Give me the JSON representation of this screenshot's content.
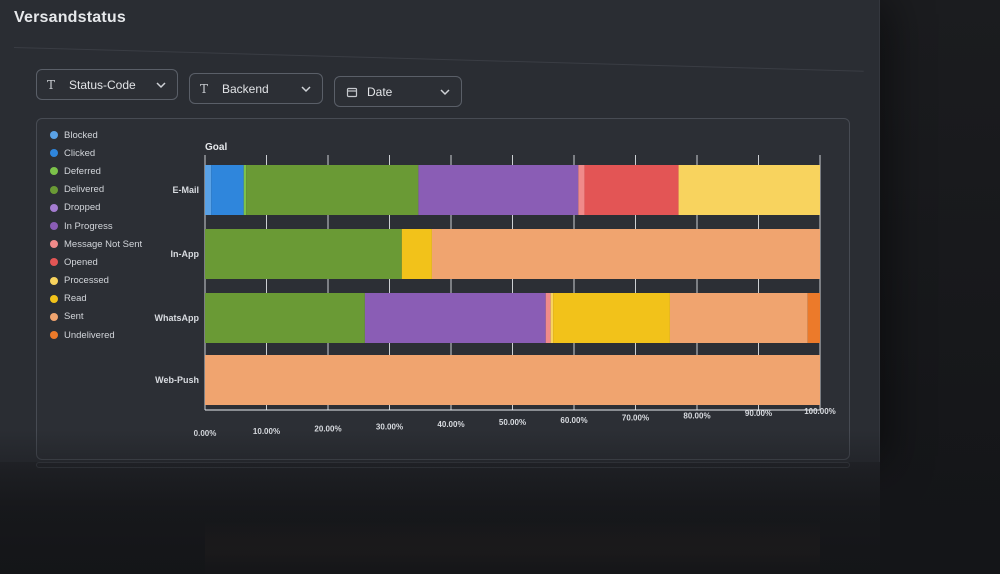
{
  "page": {
    "title": "Versandstatus"
  },
  "filters": [
    {
      "label": "Status-Code",
      "icon": "text-type-icon",
      "icon_glyph": "T"
    },
    {
      "label": "Backend",
      "icon": "text-type-icon",
      "icon_glyph": "T"
    },
    {
      "label": "Date",
      "icon": "calendar-icon",
      "icon_glyph": "▭"
    }
  ],
  "chart_data": {
    "type": "bar",
    "orientation": "horizontal",
    "stacked": true,
    "normalized": true,
    "title": "Goal",
    "categories": [
      "E-Mail",
      "In-App",
      "WhatsApp",
      "Web-Push"
    ],
    "xlim": [
      0,
      100
    ],
    "x_ticks": [
      "0.00%",
      "10.00%",
      "20.00%",
      "30.00%",
      "40.00%",
      "50.00%",
      "60.00%",
      "70.00%",
      "80.00%",
      "90.00%",
      "100.00%"
    ],
    "legend_position": "left",
    "grid": true,
    "series": [
      {
        "name": "Blocked",
        "color": "#5aa2e6",
        "values": [
          1.0,
          0,
          0,
          0
        ]
      },
      {
        "name": "Clicked",
        "color": "#2f86dc",
        "values": [
          5.3,
          0,
          0,
          0
        ]
      },
      {
        "name": "Deferred",
        "color": "#7cc24a",
        "values": [
          0.4,
          0,
          0,
          0
        ]
      },
      {
        "name": "Delivered",
        "color": "#6a9a35",
        "values": [
          28.0,
          32.0,
          26.0,
          0
        ]
      },
      {
        "name": "Dropped",
        "color": "#a47cd0",
        "values": [
          0,
          0,
          0,
          0
        ]
      },
      {
        "name": "In Progress",
        "color": "#8a5db5",
        "values": [
          26.0,
          0,
          29.4,
          0
        ]
      },
      {
        "name": "Message Not Sent",
        "color": "#f08a8a",
        "values": [
          1.0,
          0,
          0.8,
          0
        ]
      },
      {
        "name": "Opened",
        "color": "#e35555",
        "values": [
          15.3,
          0,
          0,
          0
        ]
      },
      {
        "name": "Processed",
        "color": "#f8d35e",
        "values": [
          23.0,
          0,
          0.4,
          0
        ]
      },
      {
        "name": "Read",
        "color": "#f2c21a",
        "values": [
          0,
          4.9,
          19.0,
          0
        ]
      },
      {
        "name": "Sent",
        "color": "#f0a46f",
        "values": [
          0,
          63.1,
          22.4,
          100
        ]
      },
      {
        "name": "Undelivered",
        "color": "#ec7a2a",
        "values": [
          0,
          0,
          2.0,
          0
        ]
      }
    ]
  }
}
